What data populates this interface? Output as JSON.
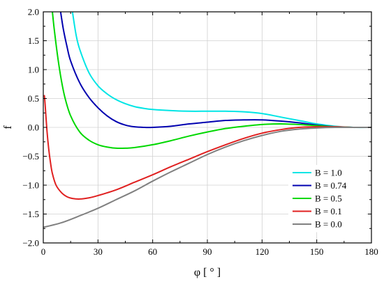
{
  "chart_data": {
    "type": "line",
    "title": "",
    "xlabel": "φ [ ° ]",
    "ylabel": "f",
    "xlim": [
      0,
      180
    ],
    "ylim": [
      -2.0,
      2.0
    ],
    "x_ticks": [
      0,
      30,
      60,
      90,
      120,
      150,
      180
    ],
    "x_tick_labels": [
      "0",
      "30",
      "60",
      "90",
      "120",
      "150",
      "180"
    ],
    "y_ticks": [
      -2.0,
      -1.5,
      -1.0,
      -0.5,
      0.0,
      0.5,
      1.0,
      1.5,
      2.0
    ],
    "y_tick_labels": [
      "−2.0",
      "−1.5",
      "−1.0",
      "−0.5",
      "0.0",
      "0.5",
      "1.0",
      "1.5",
      "2.0"
    ],
    "grid": true,
    "legend_position": "bottom-right",
    "series": [
      {
        "name": "B = 1.0",
        "color": "#00e5e5",
        "points": [
          [
            16,
            2.0
          ],
          [
            18,
            1.6
          ],
          [
            20,
            1.35
          ],
          [
            25,
            0.95
          ],
          [
            30,
            0.72
          ],
          [
            35,
            0.58
          ],
          [
            40,
            0.48
          ],
          [
            45,
            0.41
          ],
          [
            50,
            0.36
          ],
          [
            55,
            0.33
          ],
          [
            60,
            0.31
          ],
          [
            70,
            0.29
          ],
          [
            80,
            0.28
          ],
          [
            90,
            0.28
          ],
          [
            100,
            0.28
          ],
          [
            110,
            0.27
          ],
          [
            120,
            0.24
          ],
          [
            130,
            0.18
          ],
          [
            140,
            0.12
          ],
          [
            150,
            0.06
          ],
          [
            160,
            0.02
          ],
          [
            170,
            0.0
          ],
          [
            180,
            0.0
          ]
        ]
      },
      {
        "name": "B = 0.74",
        "color": "#0000b0",
        "points": [
          [
            9.5,
            2.0
          ],
          [
            11,
            1.7
          ],
          [
            13,
            1.4
          ],
          [
            15,
            1.15
          ],
          [
            20,
            0.77
          ],
          [
            25,
            0.52
          ],
          [
            30,
            0.34
          ],
          [
            35,
            0.2
          ],
          [
            40,
            0.1
          ],
          [
            45,
            0.04
          ],
          [
            50,
            0.01
          ],
          [
            55,
            0.0
          ],
          [
            60,
            0.0
          ],
          [
            70,
            0.02
          ],
          [
            80,
            0.06
          ],
          [
            90,
            0.09
          ],
          [
            100,
            0.12
          ],
          [
            110,
            0.13
          ],
          [
            120,
            0.13
          ],
          [
            130,
            0.11
          ],
          [
            140,
            0.08
          ],
          [
            150,
            0.04
          ],
          [
            160,
            0.01
          ],
          [
            170,
            0.0
          ],
          [
            180,
            0.0
          ]
        ]
      },
      {
        "name": "B = 0.5",
        "color": "#00d800",
        "points": [
          [
            5,
            2.0
          ],
          [
            6,
            1.7
          ],
          [
            8,
            1.2
          ],
          [
            10,
            0.8
          ],
          [
            12,
            0.5
          ],
          [
            15,
            0.2
          ],
          [
            20,
            -0.08
          ],
          [
            25,
            -0.22
          ],
          [
            30,
            -0.3
          ],
          [
            35,
            -0.34
          ],
          [
            40,
            -0.36
          ],
          [
            45,
            -0.36
          ],
          [
            50,
            -0.35
          ],
          [
            60,
            -0.3
          ],
          [
            70,
            -0.23
          ],
          [
            80,
            -0.15
          ],
          [
            90,
            -0.08
          ],
          [
            100,
            -0.02
          ],
          [
            110,
            0.02
          ],
          [
            120,
            0.05
          ],
          [
            130,
            0.06
          ],
          [
            140,
            0.05
          ],
          [
            150,
            0.03
          ],
          [
            160,
            0.01
          ],
          [
            170,
            0.0
          ],
          [
            180,
            0.0
          ]
        ]
      },
      {
        "name": "B = 0.1",
        "color": "#e02020",
        "points": [
          [
            0.6,
            0.55
          ],
          [
            1,
            0.4
          ],
          [
            2,
            -0.05
          ],
          [
            3,
            -0.38
          ],
          [
            4,
            -0.62
          ],
          [
            5,
            -0.8
          ],
          [
            7,
            -1.0
          ],
          [
            10,
            -1.13
          ],
          [
            13,
            -1.2
          ],
          [
            16,
            -1.23
          ],
          [
            20,
            -1.24
          ],
          [
            25,
            -1.22
          ],
          [
            30,
            -1.18
          ],
          [
            40,
            -1.08
          ],
          [
            50,
            -0.95
          ],
          [
            60,
            -0.82
          ],
          [
            70,
            -0.68
          ],
          [
            80,
            -0.55
          ],
          [
            90,
            -0.42
          ],
          [
            100,
            -0.3
          ],
          [
            110,
            -0.19
          ],
          [
            120,
            -0.1
          ],
          [
            130,
            -0.04
          ],
          [
            140,
            0.0
          ],
          [
            150,
            0.01
          ],
          [
            160,
            0.01
          ],
          [
            170,
            0.0
          ],
          [
            180,
            0.0
          ]
        ]
      },
      {
        "name": "B = 0.0",
        "color": "#808080",
        "points": [
          [
            0,
            -1.73
          ],
          [
            10,
            -1.65
          ],
          [
            20,
            -1.53
          ],
          [
            30,
            -1.4
          ],
          [
            40,
            -1.25
          ],
          [
            50,
            -1.1
          ],
          [
            60,
            -0.93
          ],
          [
            70,
            -0.77
          ],
          [
            80,
            -0.62
          ],
          [
            90,
            -0.47
          ],
          [
            100,
            -0.34
          ],
          [
            110,
            -0.23
          ],
          [
            120,
            -0.14
          ],
          [
            130,
            -0.07
          ],
          [
            140,
            -0.03
          ],
          [
            150,
            -0.01
          ],
          [
            160,
            0.0
          ],
          [
            170,
            0.0
          ],
          [
            180,
            0.0
          ]
        ]
      }
    ]
  }
}
